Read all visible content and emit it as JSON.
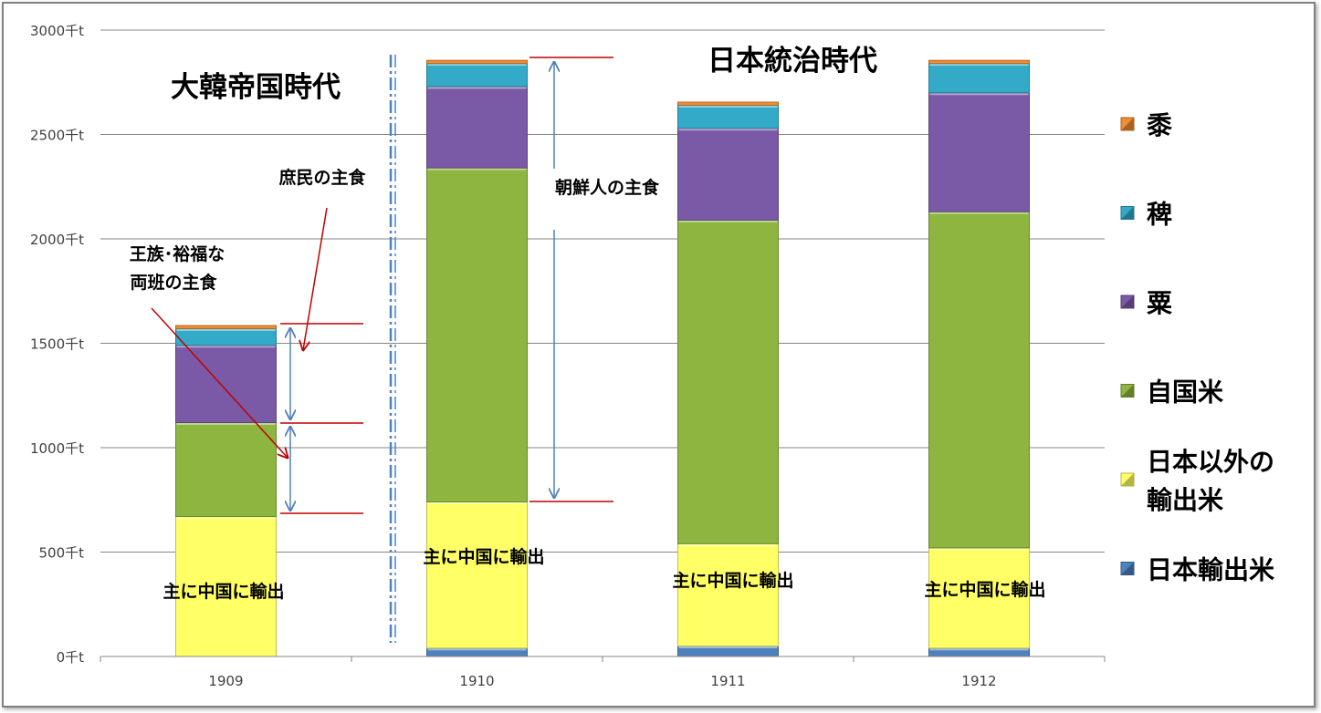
{
  "chart_data": {
    "type": "bar",
    "stacked": true,
    "categories": [
      "1909",
      "1910",
      "1911",
      "1912"
    ],
    "y_tick_labels": [
      "0千t",
      "500千t",
      "1000千t",
      "1500千t",
      "2000千t",
      "2500千t",
      "3000千t"
    ],
    "ylim": [
      0,
      3000
    ],
    "y_unit": "千t",
    "grid": true,
    "legend_position": "right",
    "series": [
      {
        "name": "日本輸出米",
        "legend_lines": [
          "日本輸出米"
        ],
        "color": "#4f81bd",
        "values": [
          0,
          40,
          50,
          40
        ]
      },
      {
        "name": "日本以外の輸出米",
        "legend_lines": [
          "日本以外の",
          "輸出米"
        ],
        "color": "#ffff66",
        "values": [
          670,
          700,
          490,
          480
        ]
      },
      {
        "name": "自国米",
        "legend_lines": [
          "自国米"
        ],
        "color": "#8db53f",
        "values": [
          450,
          1600,
          1550,
          1610
        ]
      },
      {
        "name": "粟",
        "legend_lines": [
          "粟"
        ],
        "color": "#7a5aa6",
        "values": [
          370,
          390,
          440,
          570
        ]
      },
      {
        "name": "稗",
        "legend_lines": [
          "稗"
        ],
        "color": "#32aac8",
        "values": [
          80,
          110,
          110,
          140
        ]
      },
      {
        "name": "黍",
        "legend_lines": [
          "黍"
        ],
        "color": "#f08c32",
        "values": [
          15,
          15,
          15,
          15
        ]
      }
    ],
    "annotations": {
      "era_before": "大韓帝国時代",
      "era_after": "日本統治時代",
      "commoner_staple": "庶民の主食",
      "royal_staple_line1": "王族･裕福な",
      "royal_staple_line2": "両班の主食",
      "korean_staple": "朝鮮人の主食",
      "export_china": "主に中国に輸出"
    }
  }
}
